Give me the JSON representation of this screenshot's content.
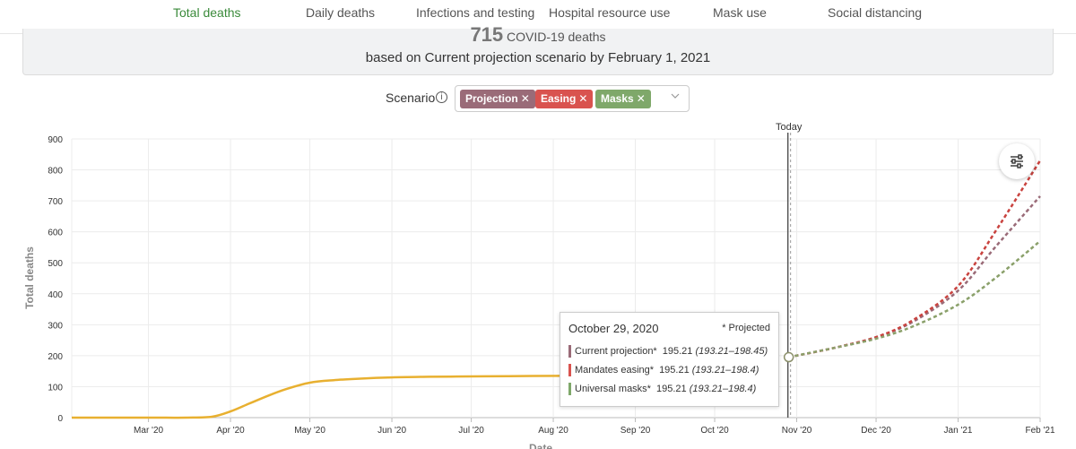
{
  "tabs": [
    {
      "label": "Total deaths",
      "active": true
    },
    {
      "label": "Daily deaths"
    },
    {
      "label": "Infections and testing"
    },
    {
      "label": "Hospital resource use"
    },
    {
      "label": "Mask use"
    },
    {
      "label": "Social distancing"
    }
  ],
  "summary": {
    "count": "715",
    "count_label": "COVID-19 deaths",
    "subtitle": "based on Current projection scenario by February 1, 2021"
  },
  "scenario": {
    "label": "Scenario",
    "chips": [
      {
        "label": "Projection",
        "color": "#9a6b78"
      },
      {
        "label": "Easing",
        "color": "#d9534f"
      },
      {
        "label": "Masks",
        "color": "#7fa86a"
      }
    ]
  },
  "tooltip": {
    "date": "October 29, 2020",
    "projected_note": "* Projected",
    "rows": [
      {
        "name": "Current projection*",
        "value": "195.21",
        "range": "(193.21–198.45)",
        "color": "#9a6b78"
      },
      {
        "name": "Mandates easing*",
        "value": "195.21",
        "range": "(193.21–198.4)",
        "color": "#d9534f"
      },
      {
        "name": "Universal masks*",
        "value": "195.21",
        "range": "(193.21–198.4)",
        "color": "#7fa86a"
      }
    ]
  },
  "chart_data": {
    "type": "line",
    "xlabel": "Date",
    "ylabel": "Total deaths",
    "ylim": [
      0,
      900
    ],
    "x_ticks": [
      "Mar '20",
      "Apr '20",
      "May '20",
      "Jun '20",
      "Jul '20",
      "Aug '20",
      "Sep '20",
      "Oct '20",
      "Nov '20",
      "Dec '20",
      "Jan '21",
      "Feb '21"
    ],
    "y_ticks": [
      0,
      100,
      200,
      300,
      400,
      500,
      600,
      700,
      800,
      900
    ],
    "today_label": "Today",
    "today_date": "2020-10-29",
    "grid": true,
    "observed": {
      "color": "#e8b030",
      "points": [
        [
          "2020-02-01",
          0
        ],
        [
          "2020-03-01",
          0
        ],
        [
          "2020-03-15",
          0
        ],
        [
          "2020-03-25",
          3
        ],
        [
          "2020-04-01",
          20
        ],
        [
          "2020-04-08",
          45
        ],
        [
          "2020-04-15",
          70
        ],
        [
          "2020-04-22",
          92
        ],
        [
          "2020-05-01",
          113
        ],
        [
          "2020-05-10",
          121
        ],
        [
          "2020-05-20",
          126
        ],
        [
          "2020-06-01",
          130
        ],
        [
          "2020-06-15",
          132
        ],
        [
          "2020-07-01",
          133
        ],
        [
          "2020-07-15",
          134
        ],
        [
          "2020-08-05",
          135
        ]
      ]
    },
    "series": [
      {
        "name": "Current projection",
        "color": "#9a6b78",
        "points": [
          [
            "2020-10-29",
            195.21
          ],
          [
            "2020-11-15",
            225
          ],
          [
            "2020-12-01",
            260
          ],
          [
            "2020-12-15",
            310
          ],
          [
            "2021-01-01",
            410
          ],
          [
            "2021-01-15",
            550
          ],
          [
            "2021-02-01",
            715
          ]
        ]
      },
      {
        "name": "Mandates easing",
        "color": "#c9433f",
        "points": [
          [
            "2020-10-29",
            195.21
          ],
          [
            "2020-11-15",
            225
          ],
          [
            "2020-12-01",
            260
          ],
          [
            "2020-12-15",
            315
          ],
          [
            "2021-01-01",
            425
          ],
          [
            "2021-01-15",
            600
          ],
          [
            "2021-02-01",
            830
          ]
        ]
      },
      {
        "name": "Universal masks",
        "color": "#8aa06a",
        "points": [
          [
            "2020-10-29",
            195.21
          ],
          [
            "2020-11-15",
            225
          ],
          [
            "2020-12-01",
            255
          ],
          [
            "2020-12-15",
            295
          ],
          [
            "2021-01-01",
            365
          ],
          [
            "2021-01-15",
            450
          ],
          [
            "2021-02-01",
            570
          ]
        ]
      }
    ],
    "marker": [
      "2020-10-29",
      195.21
    ]
  }
}
